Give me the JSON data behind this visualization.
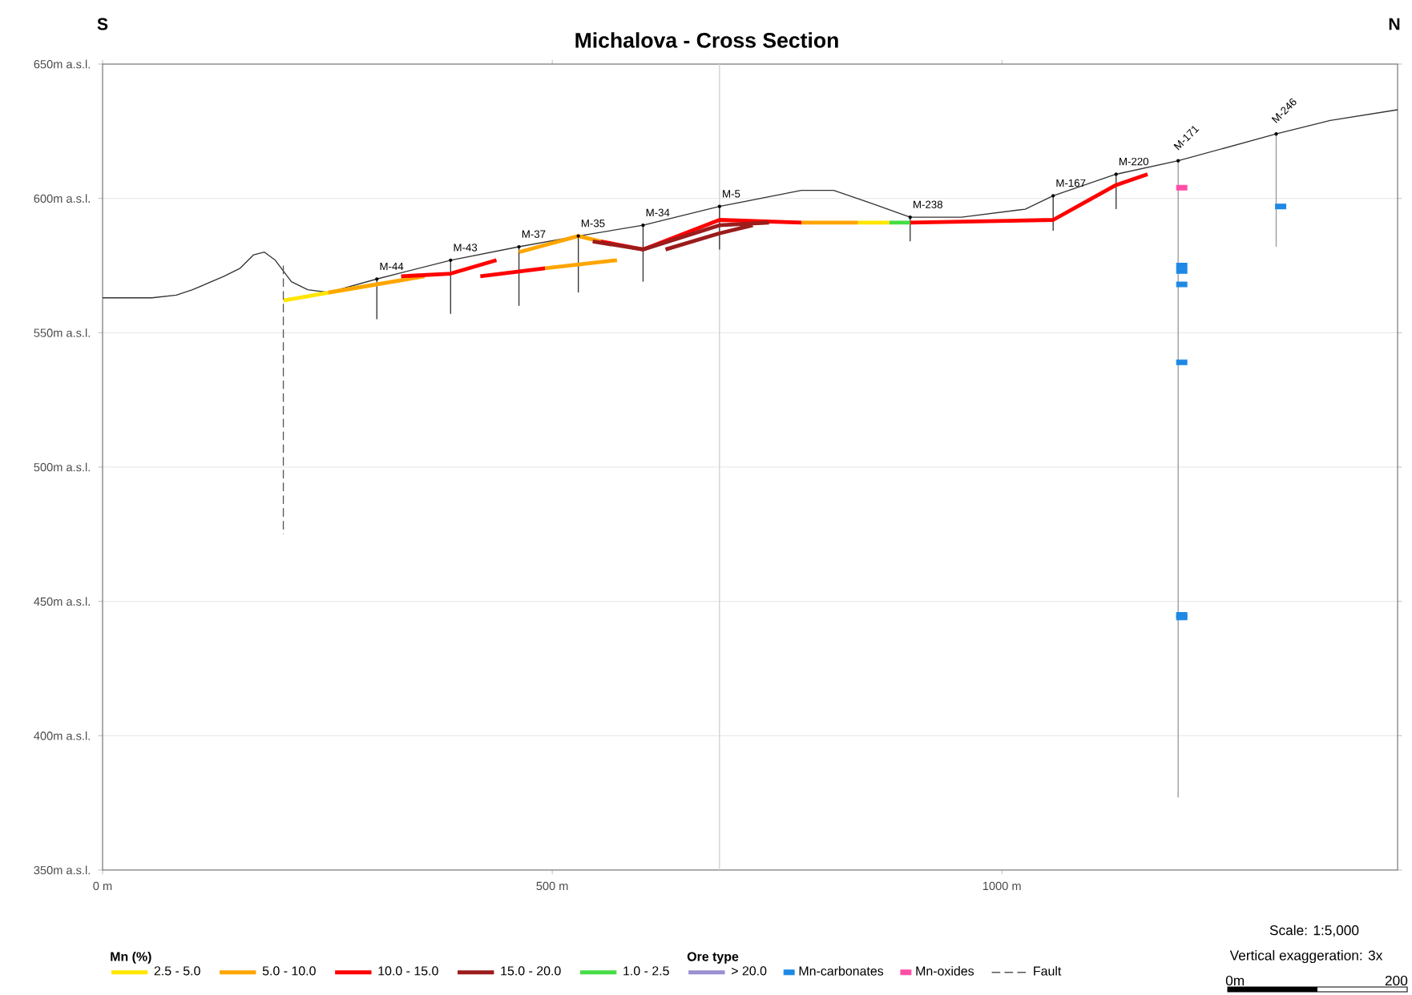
{
  "chart_data": {
    "type": "line",
    "title": "Michalova - Cross Section",
    "xlim": [
      0,
      1440
    ],
    "ylim": [
      350,
      650
    ],
    "xticks": [
      {
        "value": 0,
        "label": "0 m"
      },
      {
        "value": 500,
        "label": "500 m"
      },
      {
        "value": 1000,
        "label": "1000 m"
      }
    ],
    "yticks": [
      {
        "value": 350,
        "label": "350m a.s.l."
      },
      {
        "value": 400,
        "label": "400m a.s.l."
      },
      {
        "value": 450,
        "label": "450m a.s.l."
      },
      {
        "value": 500,
        "label": "500m a.s.l."
      },
      {
        "value": 550,
        "label": "550m a.s.l."
      },
      {
        "value": 600,
        "label": "600m a.s.l."
      },
      {
        "value": 650,
        "label": "650m a.s.l."
      }
    ],
    "grid": "y",
    "legend": "bottom",
    "legend_title": "Mn (%)",
    "ref_lines": [
      {
        "axis": "x",
        "value": 686,
        "color": "#d0d0d0"
      }
    ],
    "series": [
      {
        "color": "#333333",
        "x": [
          0,
          55,
          82,
          100,
          135,
          153,
          168,
          180,
          192,
          210,
          228,
          251,
          305,
          387,
          463,
          529,
          601,
          686,
          777,
          813,
          848,
          898,
          955,
          1026,
          1057,
          1127,
          1196,
          1305,
          1365,
          1440
        ],
        "values": [
          563,
          563,
          564,
          566,
          571,
          574,
          579,
          580,
          577,
          569,
          566,
          565,
          570,
          577,
          582,
          586,
          590,
          597,
          603,
          603,
          599,
          593,
          593,
          596,
          601,
          609,
          614,
          624,
          629,
          633
        ]
      },
      {
        "color": "#333333",
        "x": [
          305,
          305
        ],
        "values": [
          570,
          555
        ]
      },
      {
        "color": "#333333",
        "x": [
          387,
          387
        ],
        "values": [
          577,
          557
        ]
      },
      {
        "color": "#333333",
        "x": [
          463,
          463
        ],
        "values": [
          582,
          560
        ]
      },
      {
        "color": "#333333",
        "x": [
          529,
          529
        ],
        "values": [
          586,
          565
        ]
      },
      {
        "color": "#333333",
        "x": [
          601,
          601
        ],
        "values": [
          590,
          569
        ]
      },
      {
        "color": "#333333",
        "x": [
          686,
          686
        ],
        "values": [
          597,
          581
        ]
      },
      {
        "color": "#333333",
        "x": [
          898,
          898
        ],
        "values": [
          593,
          584
        ]
      },
      {
        "color": "#333333",
        "x": [
          1057,
          1057
        ],
        "values": [
          601,
          588
        ]
      },
      {
        "color": "#333333",
        "x": [
          1127,
          1127
        ],
        "values": [
          609,
          596
        ]
      },
      {
        "color": "#999999",
        "x": [
          1196,
          1196
        ],
        "values": [
          614,
          377
        ]
      },
      {
        "color": "#999999",
        "x": [
          1305,
          1305
        ],
        "values": [
          624,
          582
        ]
      },
      {
        "name": "2.5 - 5.0",
        "color": "#ffe600",
        "x": [
          201,
          305,
          null,
          840,
          875
        ],
        "values": [
          562,
          568,
          null,
          591,
          591
        ]
      },
      {
        "name": "5.0 - 10.0",
        "color": "#ffa500",
        "x": [
          251,
          358,
          null,
          463,
          529,
          554,
          null,
          492,
          572,
          null,
          777,
          840
        ],
        "values": [
          565,
          571,
          null,
          580,
          586,
          584,
          null,
          574,
          577,
          null,
          591,
          591
        ]
      },
      {
        "name": "10.0 - 15.0",
        "color": "#ff0000",
        "x": [
          332,
          387,
          438,
          null,
          420,
          492,
          null,
          554,
          601,
          686,
          777,
          null,
          898,
          1057,
          1127,
          1162
        ],
        "values": [
          571,
          572,
          577,
          null,
          571,
          574,
          null,
          584,
          581,
          592,
          591,
          null,
          591,
          592,
          605,
          609
        ]
      },
      {
        "name": "15.0 - 20.0",
        "color": "#9b1c1c",
        "x": [
          545,
          601,
          686,
          741,
          null,
          626,
          686,
          723
        ],
        "values": [
          584,
          581,
          590,
          591,
          null,
          581,
          587,
          590
        ]
      },
      {
        "name": "1.0 - 2.5",
        "color": "#44dd44",
        "x": [
          875,
          898
        ],
        "values": [
          591,
          591
        ]
      },
      {
        "name": "> 20.0",
        "color": "#9a8fd0"
      },
      {
        "name": "Mn-carbonates",
        "type": "scatter",
        "color": "#1e88e5",
        "x": [
          1200,
          1200,
          1200,
          1200,
          1200,
          1200,
          1310
        ],
        "values": [
          575,
          573,
          568,
          539,
          445,
          444,
          597
        ]
      },
      {
        "name": "Mn-oxides",
        "type": "scatter",
        "color": "#ff4da6",
        "x": [
          1200
        ],
        "values": [
          604
        ]
      },
      {
        "name": "Fault",
        "color": "#555555",
        "line_style": "dashed",
        "x": [
          201,
          201
        ],
        "values": [
          575,
          475
        ]
      }
    ],
    "annotations": [
      "S",
      "N",
      "Ore type",
      "Scale: 1:5,000",
      "Vertical exaggeration: 3x",
      "0m",
      "200",
      {
        "text": "M-44",
        "x": 305,
        "y": 570
      },
      {
        "text": "M-43",
        "x": 387,
        "y": 577
      },
      {
        "text": "M-37",
        "x": 463,
        "y": 582
      },
      {
        "text": "M-35",
        "x": 529,
        "y": 586
      },
      {
        "text": "M-34",
        "x": 601,
        "y": 590
      },
      {
        "text": "M-5",
        "x": 686,
        "y": 597
      },
      {
        "text": "M-238",
        "x": 898,
        "y": 593
      },
      {
        "text": "M-167",
        "x": 1057,
        "y": 601
      },
      {
        "text": "M-220",
        "x": 1127,
        "y": 609
      },
      {
        "text": "M-171",
        "x": 1196,
        "y": 614
      },
      {
        "text": "M-246",
        "x": 1305,
        "y": 624
      }
    ]
  }
}
